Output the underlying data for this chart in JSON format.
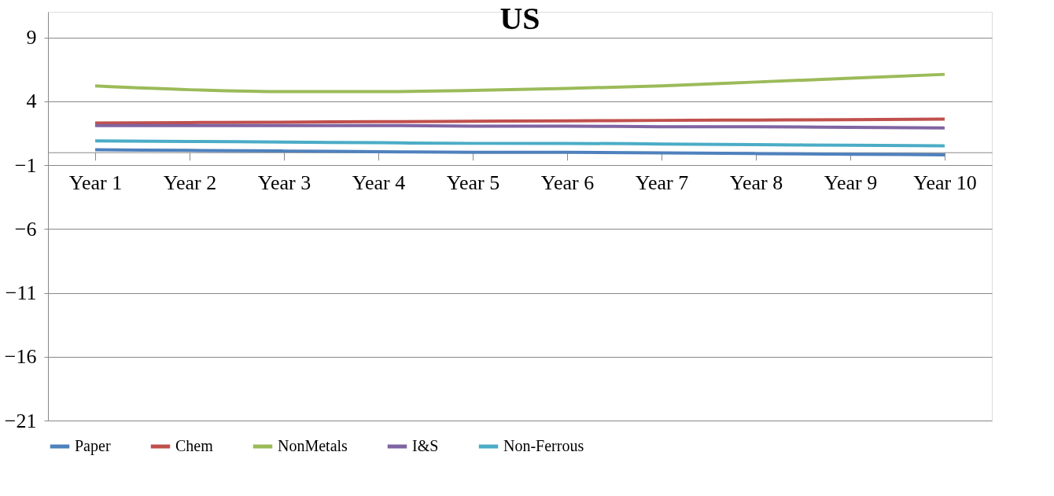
{
  "chart_data": {
    "type": "line",
    "title": "US",
    "categories": [
      "Year 1",
      "Year 2",
      "Year 3",
      "Year 4",
      "Year 5",
      "Year 6",
      "Year 7",
      "Year 8",
      "Year 9",
      "Year 10"
    ],
    "series": [
      {
        "name": "Paper",
        "color": "#4f81bd",
        "values": [
          0.2,
          0.15,
          0.1,
          0.05,
          0.0,
          0.0,
          -0.05,
          -0.1,
          -0.15,
          -0.2
        ]
      },
      {
        "name": "Chem",
        "color": "#c0504d",
        "values": [
          2.3,
          2.33,
          2.36,
          2.4,
          2.43,
          2.46,
          2.5,
          2.53,
          2.56,
          2.6
        ]
      },
      {
        "name": "NonMetals",
        "color": "#9bbb59",
        "values": [
          5.2,
          4.9,
          4.75,
          4.75,
          4.85,
          5.0,
          5.2,
          5.5,
          5.8,
          6.1
        ]
      },
      {
        "name": "I&S",
        "color": "#8064a2",
        "values": [
          2.1,
          2.1,
          2.1,
          2.1,
          2.05,
          2.05,
          2.0,
          2.0,
          1.95,
          1.9
        ]
      },
      {
        "name": "Non-Ferrous",
        "color": "#4bacc6",
        "values": [
          0.9,
          0.85,
          0.8,
          0.75,
          0.7,
          0.7,
          0.65,
          0.6,
          0.55,
          0.5
        ]
      }
    ],
    "ylim": [
      -21,
      11
    ],
    "yticks": [
      -21,
      -16,
      -11,
      -6,
      -1,
      4,
      9
    ],
    "grid": "y",
    "legend": "bottom",
    "marker": "none",
    "line_style": "solid"
  }
}
